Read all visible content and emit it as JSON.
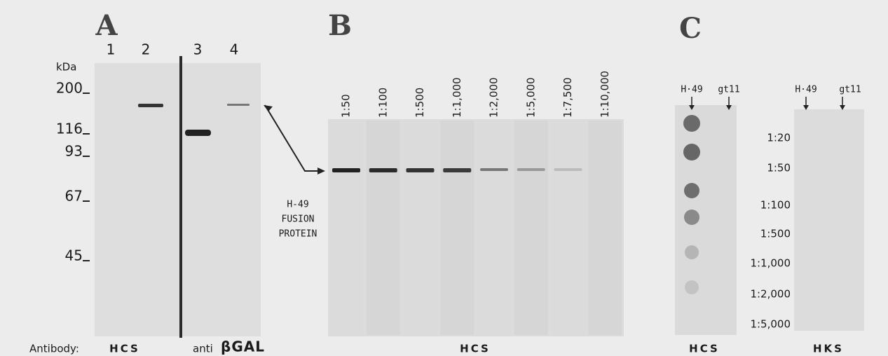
{
  "panel_a": {
    "label": "A",
    "lanes": [
      "1",
      "2",
      "3",
      "4"
    ],
    "unit": "kDa",
    "markers": [
      "200",
      "116",
      "93",
      "67",
      "45"
    ],
    "antibody_label": "Antibody:",
    "antibody_1": "HCS",
    "antibody_2_prefix": "anti",
    "antibody_2": "βGAL"
  },
  "annotation": {
    "lines": [
      "H-49",
      "FUSION",
      "PROTEIN"
    ]
  },
  "panel_b": {
    "label": "B",
    "dilutions": [
      "1:50",
      "1:100",
      "1:500",
      "1:1,000",
      "1:2,000",
      "1:5,000",
      "1:7,500",
      "1:10,000"
    ],
    "antibody": "HCS"
  },
  "panel_c": {
    "label": "C",
    "blot_1": {
      "clones": [
        "H·49",
        "gt11"
      ],
      "antibody": "HCS"
    },
    "dilutions": [
      "1:20",
      "1:50",
      "1:100",
      "1:500",
      "1:1,000",
      "1:2,000",
      "1:5,000"
    ],
    "blot_2": {
      "clones": [
        "H·49",
        "gt11"
      ],
      "antibody": "HKS"
    }
  }
}
